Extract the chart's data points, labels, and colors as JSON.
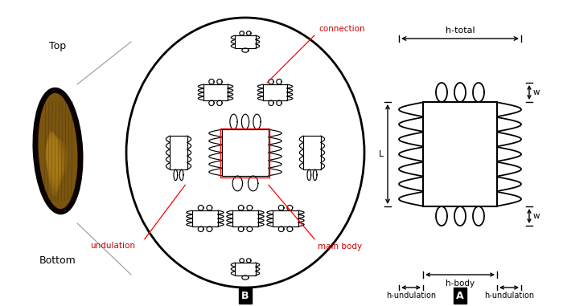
{
  "fig_width": 7.0,
  "fig_height": 3.81,
  "dpi": 100,
  "bg_color": "#ffffff",
  "label_color_red": "#cc0000",
  "label_color_black": "#000000",
  "panel_A_label": "A",
  "panel_B_label": "B",
  "top_label": "Top",
  "bottom_label": "Bottom",
  "undulation_label": "undulation",
  "connection_label": "connection",
  "main_body_label": "main body",
  "h_total_label": "h-total",
  "h_body_label": "h-body",
  "h_undulation_label": "h-undulation",
  "L_label": "L",
  "w_label": "w"
}
